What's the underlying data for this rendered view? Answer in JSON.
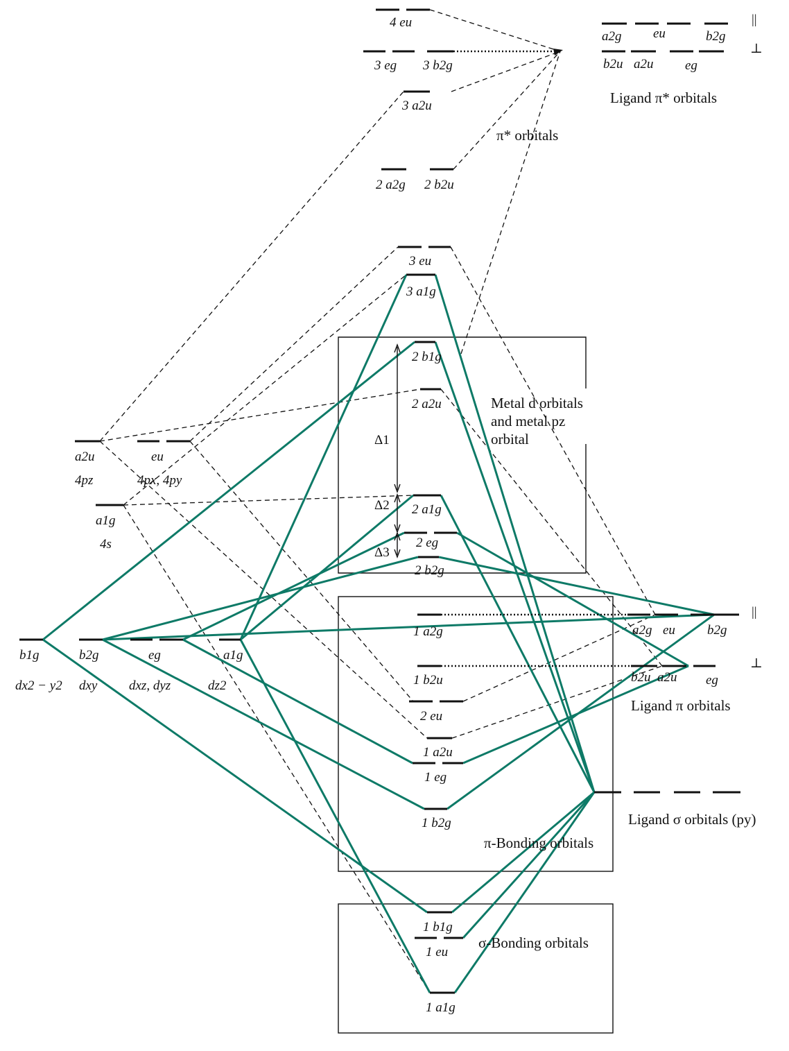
{
  "labels": {
    "lig_pi_star_a2g": "a2g",
    "lig_pi_star_eu": "eu",
    "lig_pi_star_b2g": "b2g",
    "lig_pi_star_b2u": "b2u",
    "lig_pi_star_a2u": "a2u",
    "lig_pi_star_eg": "eg",
    "parallel": "||",
    "perp": "⊥",
    "ligand_pi_star_caption": "Ligand π* orbitals",
    "pi_star_caption": "π* orbitals",
    "mo_4eu": "4 eu",
    "mo_3eg": "3 eg",
    "mo_3b2g": "3 b2g",
    "mo_3a2u": "3 a2u",
    "mo_2a2g": "2 a2g",
    "mo_2b2u": "2 b2u",
    "mo_3eu": "3 eu",
    "mo_3a1g": "3 a1g",
    "mo_2b1g": "2 b1g",
    "mo_2a2u": "2 a2u",
    "mo_2a1g": "2 a1g",
    "mo_2eg": "2 eg",
    "mo_2b2g": "2 b2g",
    "delta1": "Δ1",
    "delta2": "Δ2",
    "delta3": "Δ3",
    "metal_caption_1": "Metal d orbitals",
    "metal_caption_2": "and metal pz",
    "metal_caption_3": "orbital",
    "metal_a2u": "a2u",
    "metal_4pz": "4pz",
    "metal_eu": "eu",
    "metal_4pxpy": "4px, 4py",
    "metal_a1g_s": "a1g",
    "metal_4s": "4s",
    "metal_b1g": "b1g",
    "metal_dx2y2": "dx2 − y2",
    "metal_b2g": "b2g",
    "metal_dxy": "dxy",
    "metal_eg": "eg",
    "metal_dxzdyz": "dxz, dyz",
    "metal_a1g_d": "a1g",
    "metal_dz2": "dz2",
    "mo_1a2g": "1 a2g",
    "mo_1b2u": "1 b2u",
    "mo_2eu": "2 eu",
    "mo_1a2u": "1 a2u",
    "mo_1eg": "1 eg",
    "mo_1b2g": "1 b2g",
    "lig_pi_a2g": "a2g",
    "lig_pi_eu": "eu",
    "lig_pi_b2g": "b2g",
    "lig_pi_b2u": "b2u",
    "lig_pi_a2u": "a2u",
    "lig_pi_eg": "eg",
    "ligand_pi_caption": "Ligand π orbitals",
    "ligand_sigma_caption": "Ligand σ orbitals (py)",
    "pi_bonding_caption": "π-Bonding orbitals",
    "mo_1b1g": "1 b1g",
    "mo_1eu": "1 eu",
    "mo_1a1g": "1 a1g",
    "sigma_bonding_caption": "σ-Bonding orbitals"
  },
  "colors": {
    "bonding_lines": "#0e7a67",
    "levels": "#111111"
  }
}
